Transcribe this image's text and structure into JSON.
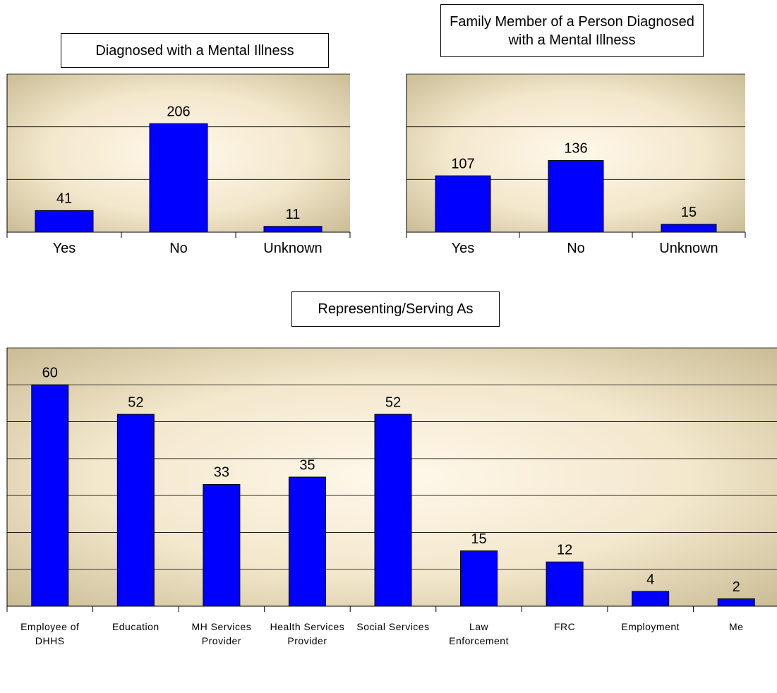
{
  "chart_data": [
    {
      "type": "bar",
      "title": "Diagnosed with a Mental Illness",
      "categories": [
        "Yes",
        "No",
        "Unknown"
      ],
      "values": [
        41,
        206,
        11
      ],
      "color": "#0000ff",
      "ylim": [
        0,
        300
      ],
      "yticks": [
        0,
        100,
        200,
        300
      ],
      "grid": true
    },
    {
      "type": "bar",
      "title": "Family Member of a Person Diagnosed with a Mental Illness",
      "categories": [
        "Yes",
        "No",
        "Unknown"
      ],
      "values": [
        107,
        136,
        15
      ],
      "color": "#0000ff",
      "ylim": [
        0,
        300
      ],
      "yticks": [
        0,
        100,
        200,
        300
      ],
      "grid": true
    },
    {
      "type": "bar",
      "title": "Representing/Serving As",
      "categories": [
        "Employee of DHHS",
        "Education",
        "MH Services Provider",
        "Health Services Provider",
        "Social Services",
        "Law Enforcement",
        "FRC",
        "Employment",
        "Me"
      ],
      "values": [
        60,
        52,
        33,
        35,
        52,
        15,
        12,
        4,
        2
      ],
      "color": "#0000ff",
      "ylim": [
        0,
        70
      ],
      "yticks": [
        0,
        10,
        20,
        30,
        40,
        50,
        60,
        70
      ],
      "grid": true
    }
  ]
}
